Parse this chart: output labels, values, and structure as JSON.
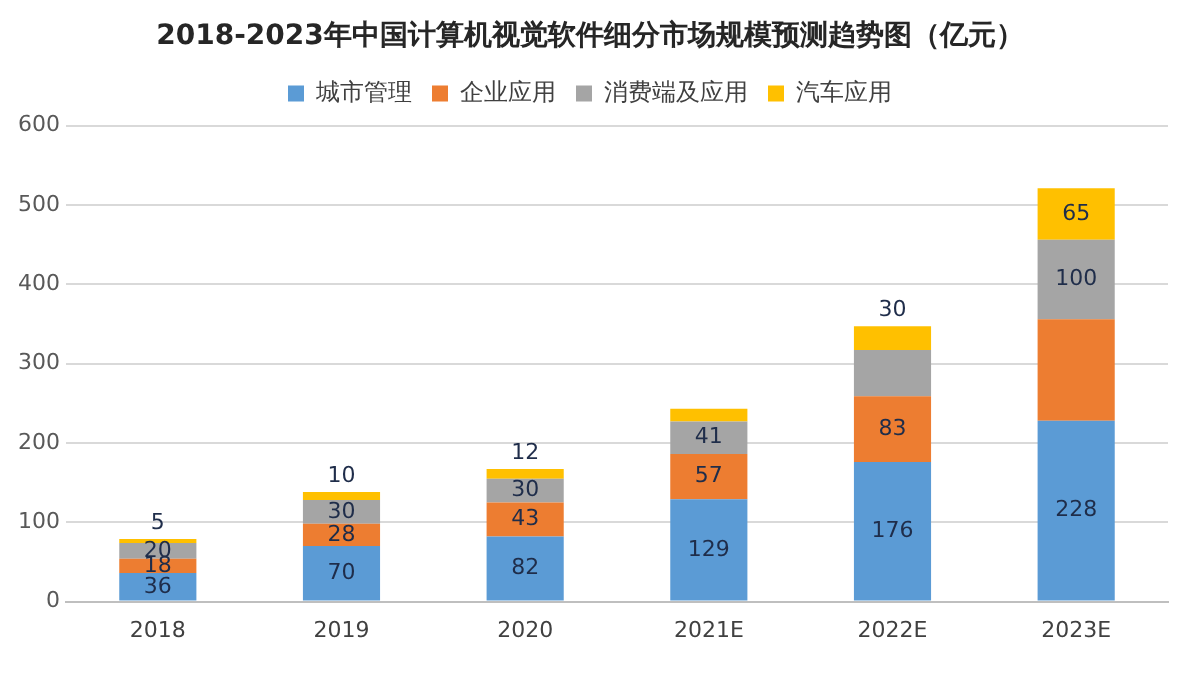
{
  "chart_data": {
    "type": "bar",
    "title": "2018-2023年中国计算机视觉软件细分市场规模预测趋势图（亿元）",
    "categories": [
      "2018",
      "2019",
      "2020",
      "2021E",
      "2022E",
      "2023E"
    ],
    "stacked": true,
    "series": [
      {
        "name": "城市管理",
        "color": "#5b9bd5",
        "values": [
          36,
          70,
          82,
          129,
          176,
          228
        ],
        "value_labels": [
          "36",
          "70",
          "82",
          "129",
          "176",
          "228"
        ]
      },
      {
        "name": "企业应用",
        "color": "#ed7d31",
        "values": [
          18,
          28,
          43,
          57,
          83,
          128
        ],
        "value_labels": [
          "18",
          "28",
          "43",
          "57",
          "83",
          null
        ]
      },
      {
        "name": "消费端及应用",
        "color": "#a5a5a5",
        "values": [
          20,
          30,
          30,
          41,
          58,
          100
        ],
        "value_labels": [
          "20",
          "30",
          "30",
          "41",
          null,
          "100"
        ]
      },
      {
        "name": "汽车应用",
        "color": "#ffc000",
        "values": [
          5,
          10,
          12,
          16,
          30,
          65
        ],
        "value_labels": [
          "5",
          "10",
          "12",
          null,
          "30",
          "65"
        ]
      }
    ],
    "ylim": [
      0,
      600
    ],
    "yticks": [
      0,
      100,
      200,
      300,
      400,
      500,
      600
    ],
    "grid": "y",
    "legend": "top"
  }
}
